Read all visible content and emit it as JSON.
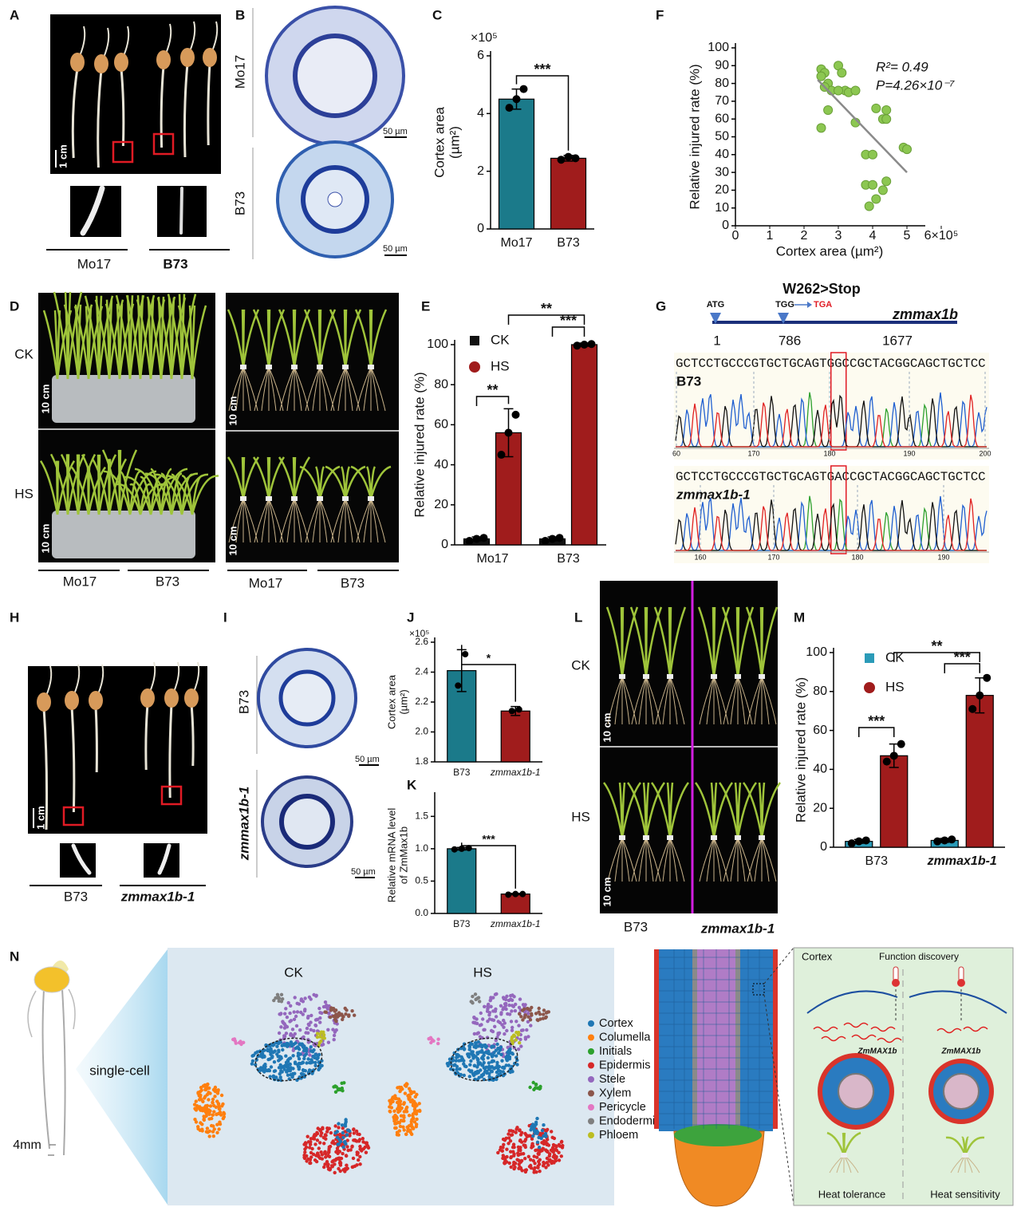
{
  "panel_labels": [
    "A",
    "B",
    "C",
    "D",
    "E",
    "F",
    "G",
    "H",
    "I",
    "J",
    "K",
    "L",
    "M",
    "N"
  ],
  "panel_a": {
    "scale": "1 cm",
    "genotypes": [
      "Mo17",
      "B73"
    ]
  },
  "panel_b": {
    "genotypes": [
      "Mo17",
      "B73"
    ],
    "scale_bars": [
      "50 µm",
      "50 µm"
    ]
  },
  "panel_d": {
    "conditions": [
      "CK",
      "HS"
    ],
    "scale_bars": [
      "10 cm",
      "10 cm",
      "10 cm",
      "10 cm"
    ],
    "genotypes_left": [
      "Mo17",
      "B73"
    ],
    "genotypes_right": [
      "Mo17",
      "B73"
    ]
  },
  "panel_g": {
    "mutation": "W262>Stop",
    "start_codon": "ATG",
    "wild_codon": "TGG",
    "mutant_codon": "TGA",
    "gene": "zmmax1b",
    "positions": [
      "1",
      "786",
      "1677"
    ],
    "traces": [
      {
        "label": "B73",
        "sequence": "GCTCCTGCCCGTGCTGCAGTGGCCGCTACGGCAGCTGCTCC",
        "ticks": [
          "60",
          "170",
          "180",
          "190",
          "200"
        ]
      },
      {
        "label": "zmmax1b-1",
        "sequence": "GCTCCTGCCCGTGCTGCAGTGACCGCTACGGCAGCTGCTCC",
        "ticks": [
          "160",
          "170",
          "180",
          "190"
        ]
      }
    ]
  },
  "panel_h": {
    "scale": "1 cm",
    "genotypes": [
      "B73",
      "zmmax1b-1"
    ]
  },
  "panel_i": {
    "genotypes": [
      "B73",
      "zmmax1b-1"
    ],
    "scale_bars": [
      "50 µm",
      "50 µm"
    ]
  },
  "panel_l": {
    "conditions": [
      "CK",
      "HS"
    ],
    "scale_bars": [
      "10 cm",
      "10 cm"
    ],
    "genotypes": [
      "B73",
      "zmmax1b-1"
    ]
  },
  "panel_n": {
    "stage": "4mm",
    "method": "single-cell",
    "umap_titles": [
      "CK",
      "HS"
    ],
    "cell_types": [
      {
        "name": "Cortex",
        "color": "#1f77b4"
      },
      {
        "name": "Columella",
        "color": "#ff7f0e"
      },
      {
        "name": "Initials",
        "color": "#2ca02c"
      },
      {
        "name": "Epidermis",
        "color": "#d62728"
      },
      {
        "name": "Stele",
        "color": "#9467bd"
      },
      {
        "name": "Xylem",
        "color": "#8c564b"
      },
      {
        "name": "Pericycle",
        "color": "#e377c2"
      },
      {
        "name": "Endodermis",
        "color": "#7f7f7f"
      },
      {
        "name": "Phloem",
        "color": "#bcbd22"
      }
    ],
    "model": {
      "tissue": "Cortex",
      "title": "Function discovery",
      "gene_labels": [
        "ZmMAX1b",
        "ZmMAX1b"
      ],
      "outcomes": [
        "Heat tolerance",
        "Heat sensitivity"
      ]
    }
  },
  "chart_data": [
    {
      "type": "bar",
      "y_label": [
        "Cortex area",
        "(µm²)"
      ],
      "y_multiplier": "×10⁵",
      "categories": [
        "Mo17",
        "B73"
      ],
      "values": [
        4.5,
        2.45
      ],
      "errors": [
        0.35,
        0.1
      ],
      "points": [
        [
          4.2,
          4.5,
          4.85
        ],
        [
          2.4,
          2.5,
          2.45
        ]
      ],
      "colors": [
        "#1b7a8a",
        "#a01c1c"
      ],
      "ylim": [
        0,
        6
      ],
      "yticks": [
        0,
        2,
        4,
        6
      ],
      "significance": [
        "***"
      ]
    },
    {
      "type": "scatter",
      "x_label": "Cortex area (µm²)",
      "y_label": [
        "Relative injured rate (%)"
      ],
      "x": [
        2.5,
        2.6,
        2.5,
        2.7,
        2.8,
        2.6,
        3.0,
        3.1,
        3.2,
        3.0,
        3.3,
        3.5,
        2.7,
        2.5,
        3.5,
        4.1,
        4.4,
        4.3,
        4.4,
        3.8,
        4.0,
        4.9,
        5.0,
        3.8,
        4.0,
        4.3,
        4.4,
        4.1,
        3.9
      ],
      "y": [
        88,
        86,
        84,
        80,
        76,
        78,
        90,
        86,
        76,
        76,
        75,
        76,
        65,
        55,
        58,
        66,
        65,
        60,
        60,
        40,
        40,
        44,
        43,
        23,
        23,
        20,
        25,
        15,
        11
      ],
      "color": "#8cc751",
      "trend": {
        "x": [
          2.4,
          5
        ],
        "y": [
          82,
          30
        ],
        "color": "#8a8a8a"
      },
      "annotations": [
        "R²= 0.49",
        "P=4.26×10⁻⁷"
      ],
      "xlim": [
        0,
        6
      ],
      "xticks": [
        0,
        1,
        2,
        3,
        4,
        5,
        {
          "value": 6,
          "label": "6×10⁵"
        }
      ],
      "ylim": [
        0,
        100
      ],
      "yticks": [
        0,
        10,
        20,
        30,
        40,
        50,
        60,
        70,
        80,
        90,
        100
      ]
    },
    {
      "type": "bar",
      "y_label": [
        "Relative injured rate (%)"
      ],
      "categories": [
        "Mo17",
        "B73"
      ],
      "series": [
        {
          "name": "CK",
          "color": "#111111",
          "values": [
            3,
            3
          ],
          "errors": [
            1,
            1
          ],
          "points": [
            [
              2,
              3,
              3.5
            ],
            [
              2,
              3,
              3.5
            ]
          ]
        },
        {
          "name": "HS",
          "color": "#a01c1c",
          "values": [
            56,
            100
          ],
          "errors": [
            12,
            0.8
          ],
          "points": [
            [
              45,
              56,
              65
            ],
            [
              99.5,
              100,
              100.3
            ]
          ]
        }
      ],
      "ylim": [
        0,
        100
      ],
      "yticks": [
        0,
        20,
        40,
        60,
        80,
        100
      ],
      "significance": [
        "**",
        "***",
        "**"
      ]
    },
    {
      "type": "bar",
      "y_label": [
        "Cortex area",
        "(µm²)"
      ],
      "y_multiplier": "×10⁵",
      "categories": [
        "B73",
        "zmmax1b-1"
      ],
      "values": [
        2.41,
        2.14
      ],
      "errors": [
        0.14,
        0.03
      ],
      "points": [
        [
          2.31,
          2.52
        ],
        [
          2.14,
          2.15
        ]
      ],
      "colors": [
        "#1b7a8a",
        "#a01c1c"
      ],
      "ylim": [
        1.8,
        2.6
      ],
      "yticks": [
        1.8,
        {
          "value": 2,
          "label": "2.0"
        },
        2.2,
        2.4,
        2.6
      ],
      "significance": [
        "*"
      ]
    },
    {
      "type": "bar",
      "y_label": [
        "Relative mRNA level",
        "of ZmMax1b"
      ],
      "categories": [
        "B73",
        "zmmax1b-1"
      ],
      "values": [
        1.0,
        0.3
      ],
      "errors": [
        0.02,
        0.01
      ],
      "points": [
        [
          0.99,
          1.0,
          1.01
        ],
        [
          0.29,
          0.3,
          0.3
        ]
      ],
      "colors": [
        "#1b7a8a",
        "#a01c1c"
      ],
      "ylim": [
        0,
        1.8
      ],
      "yticks": [
        {
          "value": 0,
          "label": "0.0"
        },
        0.5,
        {
          "value": 1,
          "label": "1.0"
        },
        1.5
      ],
      "significance": [
        "***"
      ]
    },
    {
      "type": "bar",
      "y_label": [
        "Relative injured rate (%)"
      ],
      "categories": [
        "B73",
        "zmmax1b-1"
      ],
      "series": [
        {
          "name": "CK",
          "color": "#2b9bb8",
          "values": [
            3,
            3.5
          ],
          "errors": [
            1,
            1
          ],
          "points": [
            [
              2,
              3,
              3.5
            ],
            [
              3,
              3.5,
              4
            ]
          ]
        },
        {
          "name": "HS",
          "color": "#a01c1c",
          "values": [
            47,
            78
          ],
          "errors": [
            6,
            9
          ],
          "points": [
            [
              44,
              47,
              53
            ],
            [
              71,
              78,
              87
            ]
          ]
        }
      ],
      "ylim": [
        0,
        100
      ],
      "yticks": [
        0,
        20,
        40,
        60,
        80,
        100
      ],
      "significance": [
        "***",
        "***",
        "**"
      ]
    }
  ]
}
